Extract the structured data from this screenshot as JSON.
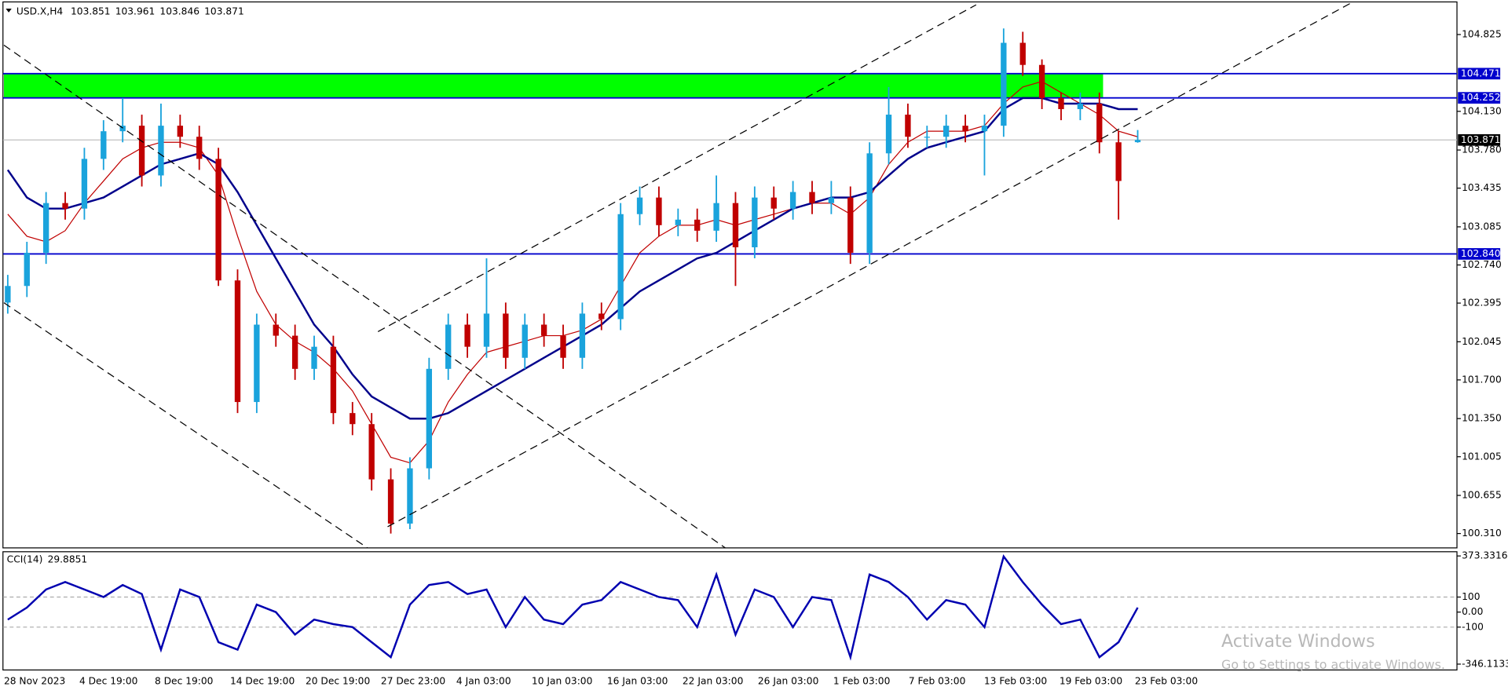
{
  "chart_data": [
    {
      "type": "candlestick",
      "title": "USD.X,H4",
      "up_color": "#1aa3dc",
      "down_color": "#c00000",
      "open": [
        102.4,
        102.55,
        102.85,
        103.3,
        103.25,
        103.7,
        103.95,
        104.0,
        103.55,
        104.0,
        103.9,
        103.7,
        102.6,
        101.5,
        102.2,
        102.1,
        101.8,
        102.0,
        101.4,
        101.3,
        100.8,
        100.4,
        100.9,
        101.8,
        102.2,
        102.0,
        102.3,
        101.9,
        102.2,
        102.1,
        101.9,
        102.3,
        102.25,
        103.2,
        103.35,
        103.1,
        103.15,
        103.05,
        103.3,
        102.9,
        103.35,
        103.25,
        103.4,
        103.3,
        103.35,
        102.85,
        103.75,
        104.1,
        103.9,
        103.9,
        104.0,
        103.95,
        104.0,
        104.75,
        104.55,
        104.25,
        104.15,
        104.2,
        103.85,
        103.851
      ],
      "high": [
        102.65,
        102.95,
        103.4,
        103.4,
        103.8,
        104.05,
        104.25,
        104.1,
        104.2,
        104.1,
        104.0,
        103.8,
        102.7,
        102.3,
        102.3,
        102.2,
        102.1,
        102.1,
        101.5,
        101.4,
        100.9,
        101.0,
        101.9,
        102.3,
        102.3,
        102.8,
        102.4,
        102.3,
        102.3,
        102.2,
        102.4,
        102.4,
        103.3,
        103.45,
        103.45,
        103.25,
        103.25,
        103.55,
        103.4,
        103.45,
        103.45,
        103.5,
        103.5,
        103.5,
        103.45,
        103.85,
        104.35,
        104.2,
        104.0,
        104.1,
        104.1,
        104.1,
        104.88,
        104.85,
        104.6,
        104.3,
        104.3,
        104.3,
        103.95,
        103.961
      ],
      "low": [
        102.3,
        102.45,
        102.75,
        103.15,
        103.15,
        103.6,
        103.85,
        103.45,
        103.45,
        103.8,
        103.6,
        102.55,
        101.4,
        101.4,
        102.0,
        101.7,
        101.7,
        101.3,
        101.2,
        100.7,
        100.31,
        100.35,
        100.8,
        101.7,
        101.9,
        101.9,
        101.8,
        101.8,
        102.0,
        101.8,
        101.8,
        102.15,
        102.15,
        103.1,
        103.0,
        103.0,
        102.95,
        102.95,
        102.55,
        102.8,
        103.15,
        103.15,
        103.2,
        103.2,
        102.75,
        102.75,
        103.65,
        103.8,
        103.8,
        103.8,
        103.85,
        103.55,
        103.9,
        104.45,
        104.15,
        104.05,
        104.05,
        103.75,
        103.15,
        103.846
      ],
      "close": [
        102.55,
        102.85,
        103.3,
        103.25,
        103.7,
        103.95,
        104.0,
        103.55,
        104.0,
        103.9,
        103.7,
        102.6,
        101.5,
        102.2,
        102.1,
        101.8,
        102.0,
        101.4,
        101.3,
        100.8,
        100.4,
        100.9,
        101.8,
        102.2,
        102.0,
        102.3,
        101.9,
        102.2,
        102.1,
        101.9,
        102.3,
        102.25,
        103.2,
        103.35,
        103.1,
        103.15,
        103.05,
        103.3,
        102.9,
        103.35,
        103.25,
        103.4,
        103.3,
        103.35,
        102.85,
        103.75,
        104.1,
        103.9,
        103.9,
        104.0,
        103.95,
        104.0,
        104.75,
        104.55,
        104.25,
        104.15,
        104.2,
        103.85,
        103.5,
        103.871
      ],
      "moving_averages": [
        {
          "color": "#c00000",
          "values": [
            103.2,
            103.0,
            102.95,
            103.05,
            103.3,
            103.5,
            103.7,
            103.8,
            103.85,
            103.85,
            103.8,
            103.55,
            103.0,
            102.5,
            102.2,
            102.05,
            101.95,
            101.8,
            101.6,
            101.3,
            101.0,
            100.95,
            101.15,
            101.5,
            101.75,
            101.95,
            102.0,
            102.05,
            102.1,
            102.1,
            102.15,
            102.25,
            102.55,
            102.85,
            103.0,
            103.1,
            103.1,
            103.15,
            103.1,
            103.15,
            103.2,
            103.25,
            103.3,
            103.3,
            103.2,
            103.35,
            103.65,
            103.85,
            103.95,
            103.95,
            103.95,
            104.0,
            104.2,
            104.35,
            104.4,
            104.3,
            104.2,
            104.1,
            103.95,
            103.9
          ]
        },
        {
          "color": "#00008b",
          "values": [
            103.6,
            103.35,
            103.25,
            103.25,
            103.3,
            103.35,
            103.45,
            103.55,
            103.65,
            103.7,
            103.75,
            103.65,
            103.4,
            103.1,
            102.8,
            102.5,
            102.2,
            102.0,
            101.75,
            101.55,
            101.45,
            101.35,
            101.35,
            101.4,
            101.5,
            101.6,
            101.7,
            101.8,
            101.9,
            102.0,
            102.1,
            102.2,
            102.35,
            102.5,
            102.6,
            102.7,
            102.8,
            102.85,
            102.95,
            103.05,
            103.15,
            103.25,
            103.3,
            103.35,
            103.35,
            103.4,
            103.55,
            103.7,
            103.8,
            103.85,
            103.9,
            103.95,
            104.15,
            104.25,
            104.25,
            104.2,
            104.2,
            104.2,
            104.15,
            104.15
          ]
        }
      ],
      "zone": [
        104.252,
        104.471
      ],
      "zone_color": "#00ff00",
      "levels": [
        104.471,
        104.252,
        {
          "value": 102.84,
          "label": "102.840"
        }
      ],
      "level_color": "#0000cd",
      "ylim": [
        100.18,
        105.12
      ],
      "yticks": [
        104.825,
        {
          "value": 104.13,
          "label": "104.130"
        },
        {
          "value": 103.78,
          "label": "103.780"
        },
        103.435,
        103.085,
        {
          "value": 102.74,
          "label": "102.740"
        },
        102.395,
        102.045,
        {
          "value": 101.7,
          "label": "101.700"
        },
        {
          "value": 101.35,
          "label": "101.350"
        },
        101.005,
        100.655,
        {
          "value": 100.31,
          "label": "100.310"
        }
      ],
      "time_labels": [
        "28 Nov 2023",
        "4 Dec 19:00",
        "8 Dec 19:00",
        "14 Dec 19:00",
        "20 Dec 19:00",
        "27 Dec 23:00",
        "4 Jan 03:00",
        "10 Jan 03:00",
        "16 Jan 03:00",
        "22 Jan 03:00",
        "26 Jan 03:00",
        "1 Feb 03:00",
        "7 Feb 03:00",
        "13 Feb 03:00",
        "19 Feb 03:00",
        "23 Feb 03:00"
      ]
    },
    {
      "type": "line",
      "title": "CCI(14)",
      "color": "#0000b0",
      "values": [
        -50,
        30,
        150,
        200,
        150,
        100,
        180,
        120,
        -250,
        150,
        100,
        -200,
        -250,
        50,
        0,
        -150,
        -50,
        -80,
        -100,
        -200,
        -300,
        50,
        180,
        200,
        120,
        150,
        -100,
        100,
        -50,
        -80,
        50,
        80,
        200,
        150,
        100,
        80,
        -100,
        250,
        -150,
        150,
        100,
        -100,
        100,
        80,
        -300,
        250,
        200,
        100,
        -50,
        80,
        50,
        -100,
        370,
        200,
        50,
        -80,
        -50,
        -300,
        -200,
        29.8851
      ],
      "ylim": [
        -385,
        395
      ],
      "yticks": [
        373.3316,
        100,
        {
          "value": 0,
          "label": "0.00"
        },
        -100,
        -346.1133
      ],
      "levels": [
        100,
        -100
      ]
    }
  ],
  "watermark": {
    "title": "Activate Windows",
    "subtitle": "Go to Settings to activate Windows."
  }
}
